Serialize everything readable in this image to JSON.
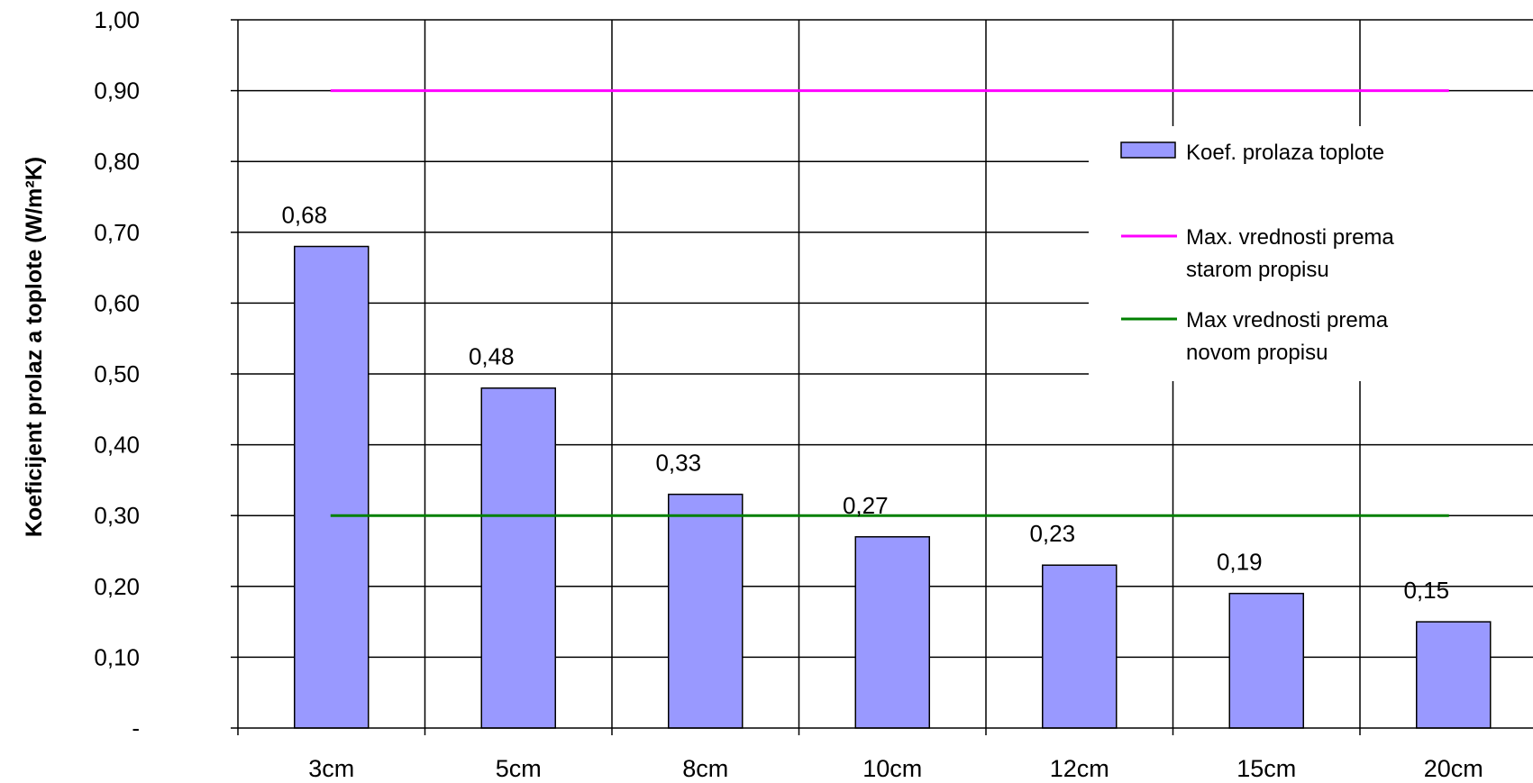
{
  "chart_data": {
    "type": "bar",
    "categories": [
      "3cm",
      "5cm",
      "8cm",
      "10cm",
      "12cm",
      "15cm",
      "20cm"
    ],
    "series": [
      {
        "name": "Koef. prolaza toplote",
        "kind": "bar",
        "color": "#9999ff",
        "values": [
          0.68,
          0.48,
          0.33,
          0.27,
          0.23,
          0.19,
          0.15
        ],
        "data_labels": [
          "0,68",
          "0,48",
          "0,33",
          "0,27",
          "0,23",
          "0,19",
          "0,15"
        ]
      },
      {
        "name": "Max. vrednosti prema starom propisu",
        "name_lines": [
          "Max. vrednosti prema",
          "starom propisu"
        ],
        "kind": "line",
        "color": "#ff00ff",
        "values": [
          0.9,
          0.9,
          0.9,
          0.9,
          0.9,
          0.9,
          0.9
        ]
      },
      {
        "name": "Max vrednosti prema novom propisu",
        "name_lines": [
          "Max vrednosti prema",
          "novom propisu"
        ],
        "kind": "line",
        "color": "#008000",
        "values": [
          0.3,
          0.3,
          0.3,
          0.3,
          0.3,
          0.3,
          0.3
        ]
      }
    ],
    "ylabel": "Koeficijent prolaz a toplote (W/m²K)",
    "xlabel": "",
    "title": "",
    "ylim": [
      0,
      1.0
    ],
    "y_ticks": [
      {
        "value": 1.0,
        "label": "1,00"
      },
      {
        "value": 0.9,
        "label": "0,90"
      },
      {
        "value": 0.8,
        "label": "0,80"
      },
      {
        "value": 0.7,
        "label": "0,70"
      },
      {
        "value": 0.6,
        "label": "0,60"
      },
      {
        "value": 0.5,
        "label": "0,50"
      },
      {
        "value": 0.4,
        "label": "0,40"
      },
      {
        "value": 0.3,
        "label": "0,30"
      },
      {
        "value": 0.2,
        "label": "0,20"
      },
      {
        "value": 0.1,
        "label": "0,10"
      },
      {
        "value": 0.0,
        "label": "-"
      }
    ],
    "grid": true,
    "legend_position": "right"
  }
}
